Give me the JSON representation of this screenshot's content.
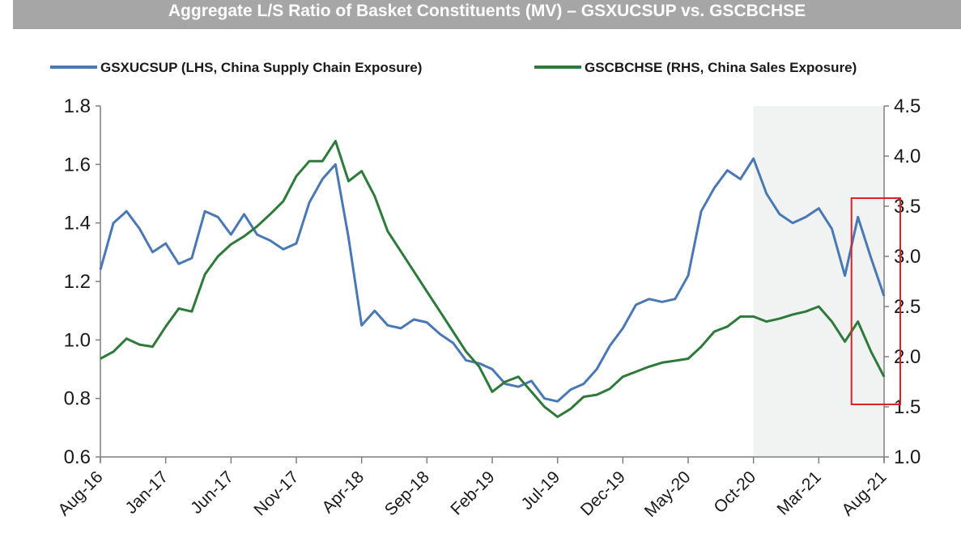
{
  "chart_data": {
    "type": "line",
    "title": "Aggregate L/S Ratio of Basket Constituents (MV) – GSXUCSUP vs. GSCBCHSE",
    "xlabel": "",
    "ylabel": "",
    "y2label": "",
    "grid": false,
    "legend_position": "top",
    "x_tick_labels": [
      "Aug-16",
      "Jan-17",
      "Jun-17",
      "Nov-17",
      "Apr-18",
      "Sep-18",
      "Feb-19",
      "Jul-19",
      "Dec-19",
      "May-20",
      "Oct-20",
      "Mar-21",
      "Aug-21"
    ],
    "y_left": {
      "range": [
        0.6,
        1.8
      ],
      "ticks": [
        "0.6",
        "0.8",
        "1.0",
        "1.2",
        "1.4",
        "1.6",
        "1.8"
      ]
    },
    "y_right": {
      "range": [
        1.0,
        4.5
      ],
      "ticks": [
        "1.0",
        "1.5",
        "2.0",
        "2.5",
        "3.0",
        "3.5",
        "4.0",
        "4.5"
      ]
    },
    "shaded_region": {
      "x_start": "Oct-20",
      "x_end": "Aug-21",
      "color": "#f0f3f1"
    },
    "highlight_box": {
      "x_start": "Jun-21",
      "x_end": "Aug-21",
      "color": "#d9232a"
    },
    "series": [
      {
        "name": "GSXUCSUP (LHS, China Supply Chain Exposure)",
        "axis": "left",
        "color": "#4a78b5",
        "points": [
          [
            "Aug-16",
            1.24
          ],
          [
            "Sep-16",
            1.4
          ],
          [
            "Oct-16",
            1.44
          ],
          [
            "Nov-16",
            1.38
          ],
          [
            "Dec-16",
            1.3
          ],
          [
            "Jan-17",
            1.33
          ],
          [
            "Feb-17",
            1.26
          ],
          [
            "Mar-17",
            1.28
          ],
          [
            "Apr-17",
            1.44
          ],
          [
            "May-17",
            1.42
          ],
          [
            "Jun-17",
            1.36
          ],
          [
            "Jul-17",
            1.43
          ],
          [
            "Aug-17",
            1.36
          ],
          [
            "Sep-17",
            1.34
          ],
          [
            "Oct-17",
            1.31
          ],
          [
            "Nov-17",
            1.33
          ],
          [
            "Dec-17",
            1.47
          ],
          [
            "Jan-18",
            1.55
          ],
          [
            "Feb-18",
            1.6
          ],
          [
            "Mar-18",
            1.35
          ],
          [
            "Apr-18",
            1.05
          ],
          [
            "May-18",
            1.1
          ],
          [
            "Jun-18",
            1.05
          ],
          [
            "Jul-18",
            1.04
          ],
          [
            "Aug-18",
            1.07
          ],
          [
            "Sep-18",
            1.06
          ],
          [
            "Oct-18",
            1.02
          ],
          [
            "Nov-18",
            0.99
          ],
          [
            "Dec-18",
            0.93
          ],
          [
            "Jan-19",
            0.92
          ],
          [
            "Feb-19",
            0.9
          ],
          [
            "Mar-19",
            0.85
          ],
          [
            "Apr-19",
            0.84
          ],
          [
            "May-19",
            0.86
          ],
          [
            "Jun-19",
            0.8
          ],
          [
            "Jul-19",
            0.79
          ],
          [
            "Aug-19",
            0.83
          ],
          [
            "Sep-19",
            0.85
          ],
          [
            "Oct-19",
            0.9
          ],
          [
            "Nov-19",
            0.98
          ],
          [
            "Dec-19",
            1.04
          ],
          [
            "Jan-20",
            1.12
          ],
          [
            "Feb-20",
            1.14
          ],
          [
            "Mar-20",
            1.13
          ],
          [
            "Apr-20",
            1.14
          ],
          [
            "May-20",
            1.22
          ],
          [
            "Jun-20",
            1.44
          ],
          [
            "Jul-20",
            1.52
          ],
          [
            "Aug-20",
            1.58
          ],
          [
            "Sep-20",
            1.55
          ],
          [
            "Oct-20",
            1.62
          ],
          [
            "Nov-20",
            1.5
          ],
          [
            "Dec-20",
            1.43
          ],
          [
            "Jan-21",
            1.4
          ],
          [
            "Feb-21",
            1.42
          ],
          [
            "Mar-21",
            1.45
          ],
          [
            "Apr-21",
            1.38
          ],
          [
            "May-21",
            1.22
          ],
          [
            "Jun-21",
            1.42
          ],
          [
            "Jul-21",
            1.28
          ],
          [
            "Aug-21",
            1.15
          ]
        ]
      },
      {
        "name": "GSCBCHSE (RHS, China Sales Exposure)",
        "axis": "right",
        "color": "#2e7a3a",
        "points": [
          [
            "Aug-16",
            1.98
          ],
          [
            "Sep-16",
            2.05
          ],
          [
            "Oct-16",
            2.18
          ],
          [
            "Nov-16",
            2.12
          ],
          [
            "Dec-16",
            2.1
          ],
          [
            "Jan-17",
            2.3
          ],
          [
            "Feb-17",
            2.48
          ],
          [
            "Mar-17",
            2.45
          ],
          [
            "Apr-17",
            2.82
          ],
          [
            "May-17",
            3.0
          ],
          [
            "Jun-17",
            3.12
          ],
          [
            "Jul-17",
            3.2
          ],
          [
            "Aug-17",
            3.3
          ],
          [
            "Sep-17",
            3.42
          ],
          [
            "Oct-17",
            3.55
          ],
          [
            "Nov-17",
            3.8
          ],
          [
            "Dec-17",
            3.95
          ],
          [
            "Jan-18",
            3.95
          ],
          [
            "Feb-18",
            4.15
          ],
          [
            "Mar-18",
            3.75
          ],
          [
            "Apr-18",
            3.85
          ],
          [
            "May-18",
            3.6
          ],
          [
            "Jun-18",
            3.25
          ],
          [
            "Jul-18",
            3.05
          ],
          [
            "Aug-18",
            2.85
          ],
          [
            "Sep-18",
            2.65
          ],
          [
            "Oct-18",
            2.45
          ],
          [
            "Nov-18",
            2.25
          ],
          [
            "Dec-18",
            2.05
          ],
          [
            "Jan-19",
            1.9
          ],
          [
            "Feb-19",
            1.65
          ],
          [
            "Mar-19",
            1.75
          ],
          [
            "Apr-19",
            1.8
          ],
          [
            "May-19",
            1.65
          ],
          [
            "Jun-19",
            1.5
          ],
          [
            "Jul-19",
            1.4
          ],
          [
            "Aug-19",
            1.48
          ],
          [
            "Sep-19",
            1.6
          ],
          [
            "Oct-19",
            1.62
          ],
          [
            "Nov-19",
            1.68
          ],
          [
            "Dec-19",
            1.8
          ],
          [
            "Jan-20",
            1.85
          ],
          [
            "Feb-20",
            1.9
          ],
          [
            "Mar-20",
            1.94
          ],
          [
            "Apr-20",
            1.96
          ],
          [
            "May-20",
            1.98
          ],
          [
            "Jun-20",
            2.1
          ],
          [
            "Jul-20",
            2.25
          ],
          [
            "Aug-20",
            2.3
          ],
          [
            "Sep-20",
            2.4
          ],
          [
            "Oct-20",
            2.4
          ],
          [
            "Nov-20",
            2.35
          ],
          [
            "Dec-20",
            2.38
          ],
          [
            "Jan-21",
            2.42
          ],
          [
            "Feb-21",
            2.45
          ],
          [
            "Mar-21",
            2.5
          ],
          [
            "Apr-21",
            2.35
          ],
          [
            "May-21",
            2.15
          ],
          [
            "Jun-21",
            2.35
          ],
          [
            "Jul-21",
            2.05
          ],
          [
            "Aug-21",
            1.8
          ]
        ]
      }
    ]
  }
}
